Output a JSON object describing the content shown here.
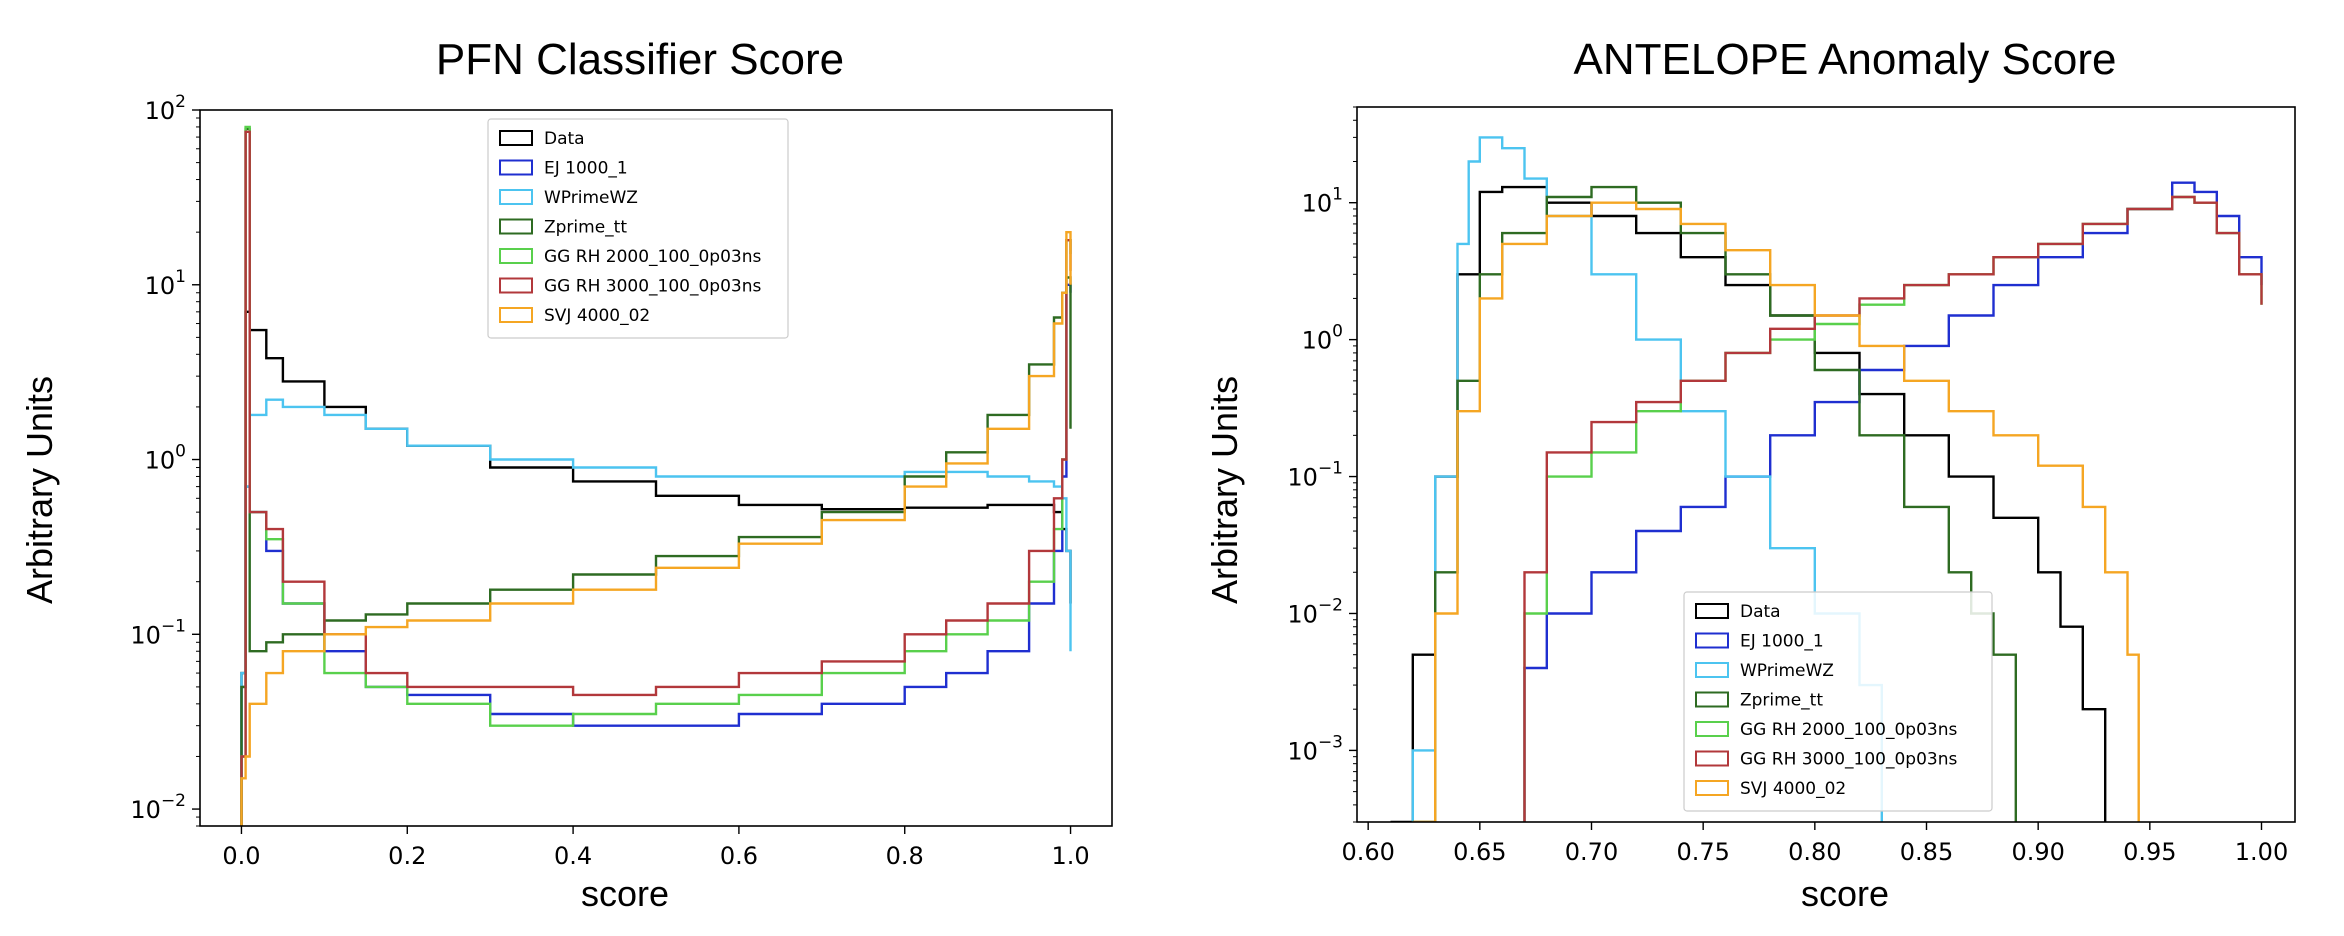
{
  "chart_data": [
    {
      "type": "line",
      "title": "PFN Classifier Score",
      "xlabel": "score",
      "ylabel": "Arbitrary Units",
      "xlim": [
        -0.05,
        1.05
      ],
      "ylim": [
        0.008,
        100
      ],
      "yscale": "log",
      "grid": false,
      "legend_position": "upper-center",
      "xticks": [
        "0.0",
        "0.2",
        "0.4",
        "0.6",
        "0.8",
        "1.0"
      ],
      "xtick_values": [
        0.0,
        0.2,
        0.4,
        0.6,
        0.8,
        1.0
      ],
      "yticks": [
        {
          "base": "10",
          "exp": "−2",
          "value": 0.01
        },
        {
          "base": "10",
          "exp": "−1",
          "value": 0.1
        },
        {
          "base": "10",
          "exp": "0",
          "value": 1
        },
        {
          "base": "10",
          "exp": "1",
          "value": 10
        },
        {
          "base": "10",
          "exp": "2",
          "value": 100
        }
      ],
      "series": [
        {
          "name": "Data",
          "color": "#000000",
          "x": [
            0.0,
            0.005,
            0.01,
            0.03,
            0.05,
            0.1,
            0.15,
            0.2,
            0.3,
            0.4,
            0.5,
            0.6,
            0.7,
            0.8,
            0.9,
            0.95,
            0.98,
            0.99,
            0.995,
            1.0
          ],
          "y": [
            0.06,
            7,
            5.5,
            3.8,
            2.8,
            2.0,
            1.5,
            1.2,
            0.9,
            0.75,
            0.62,
            0.55,
            0.52,
            0.53,
            0.55,
            0.55,
            0.5,
            0.4,
            0.3,
            0.15
          ]
        },
        {
          "name": "EJ 1000_1",
          "color": "#1f2fd0",
          "x": [
            0.0,
            0.005,
            0.01,
            0.03,
            0.05,
            0.1,
            0.15,
            0.2,
            0.3,
            0.4,
            0.5,
            0.6,
            0.7,
            0.8,
            0.85,
            0.9,
            0.95,
            0.98,
            0.99,
            0.995,
            1.0
          ],
          "y": [
            0.05,
            0.7,
            0.5,
            0.3,
            0.15,
            0.08,
            0.05,
            0.045,
            0.035,
            0.03,
            0.03,
            0.035,
            0.04,
            0.05,
            0.06,
            0.08,
            0.15,
            0.3,
            0.8,
            10,
            9
          ]
        },
        {
          "name": "WPrimeWZ",
          "color": "#4cc4f0",
          "x": [
            0.0,
            0.005,
            0.01,
            0.03,
            0.05,
            0.1,
            0.15,
            0.2,
            0.3,
            0.4,
            0.5,
            0.6,
            0.7,
            0.8,
            0.85,
            0.9,
            0.95,
            0.98,
            0.99,
            0.995,
            1.0
          ],
          "y": [
            0.06,
            0.7,
            1.8,
            2.2,
            2.0,
            1.8,
            1.5,
            1.2,
            1.0,
            0.9,
            0.8,
            0.8,
            0.8,
            0.85,
            0.85,
            0.8,
            0.75,
            0.7,
            0.6,
            0.3,
            0.08
          ]
        },
        {
          "name": "Zprime_tt",
          "color": "#2e6b22",
          "x": [
            0.0,
            0.005,
            0.01,
            0.03,
            0.05,
            0.1,
            0.15,
            0.2,
            0.3,
            0.4,
            0.5,
            0.6,
            0.7,
            0.8,
            0.85,
            0.9,
            0.95,
            0.98,
            0.99,
            0.995,
            1.0
          ],
          "y": [
            0.05,
            78,
            0.08,
            0.09,
            0.1,
            0.12,
            0.13,
            0.15,
            0.18,
            0.22,
            0.28,
            0.36,
            0.5,
            0.8,
            1.1,
            1.8,
            3.5,
            6.5,
            9,
            11,
            1.5
          ]
        },
        {
          "name": "GG RH 2000_100_0p03ns",
          "color": "#59d04c",
          "x": [
            0.0,
            0.005,
            0.01,
            0.03,
            0.05,
            0.1,
            0.15,
            0.2,
            0.3,
            0.4,
            0.5,
            0.6,
            0.7,
            0.8,
            0.85,
            0.9,
            0.95,
            0.98,
            0.99,
            0.995,
            1.0
          ],
          "y": [
            0.02,
            80,
            0.5,
            0.35,
            0.15,
            0.06,
            0.05,
            0.04,
            0.03,
            0.035,
            0.04,
            0.045,
            0.06,
            0.08,
            0.1,
            0.12,
            0.2,
            0.4,
            1.0,
            18,
            15
          ]
        },
        {
          "name": "GG RH 3000_100_0p03ns",
          "color": "#b2383b",
          "x": [
            0.0,
            0.005,
            0.01,
            0.03,
            0.05,
            0.1,
            0.15,
            0.2,
            0.3,
            0.4,
            0.5,
            0.6,
            0.7,
            0.8,
            0.85,
            0.9,
            0.95,
            0.98,
            0.99,
            0.995,
            1.0
          ],
          "y": [
            0.02,
            75,
            0.5,
            0.4,
            0.2,
            0.1,
            0.06,
            0.05,
            0.05,
            0.045,
            0.05,
            0.06,
            0.07,
            0.1,
            0.12,
            0.15,
            0.3,
            0.6,
            1.0,
            18,
            12
          ]
        },
        {
          "name": "SVJ 4000_02",
          "color": "#f5a623",
          "x": [
            0.0,
            0.005,
            0.01,
            0.03,
            0.05,
            0.1,
            0.15,
            0.2,
            0.3,
            0.4,
            0.5,
            0.6,
            0.7,
            0.8,
            0.85,
            0.9,
            0.95,
            0.98,
            0.99,
            0.995,
            1.0
          ],
          "y": [
            0.015,
            0.02,
            0.04,
            0.06,
            0.08,
            0.1,
            0.11,
            0.12,
            0.15,
            0.18,
            0.24,
            0.33,
            0.45,
            0.7,
            0.95,
            1.5,
            3.0,
            6.0,
            9,
            20,
            10
          ]
        }
      ]
    },
    {
      "type": "line",
      "title": "ANTELOPE Anomaly Score",
      "xlabel": "score",
      "ylabel": "Arbitrary Units",
      "xlim": [
        0.595,
        1.015
      ],
      "ylim": [
        0.0003,
        50
      ],
      "yscale": "log",
      "grid": false,
      "legend_position": "lower-center",
      "xticks": [
        "0.60",
        "0.65",
        "0.70",
        "0.75",
        "0.80",
        "0.85",
        "0.90",
        "0.95",
        "1.00"
      ],
      "xtick_values": [
        0.6,
        0.65,
        0.7,
        0.75,
        0.8,
        0.85,
        0.9,
        0.95,
        1.0
      ],
      "yticks": [
        {
          "base": "10",
          "exp": "−3",
          "value": 0.001
        },
        {
          "base": "10",
          "exp": "−2",
          "value": 0.01
        },
        {
          "base": "10",
          "exp": "−1",
          "value": 0.1
        },
        {
          "base": "10",
          "exp": "0",
          "value": 1
        },
        {
          "base": "10",
          "exp": "1",
          "value": 10
        }
      ],
      "series": [
        {
          "name": "Data",
          "color": "#000000",
          "x": [
            0.61,
            0.62,
            0.63,
            0.64,
            0.65,
            0.66,
            0.68,
            0.7,
            0.72,
            0.74,
            0.76,
            0.78,
            0.8,
            0.82,
            0.84,
            0.86,
            0.88,
            0.9,
            0.91,
            0.92,
            0.93
          ],
          "y": [
            0.0003,
            0.005,
            0.1,
            3,
            12,
            13,
            10,
            8,
            6,
            4,
            2.5,
            1.5,
            0.8,
            0.4,
            0.2,
            0.1,
            0.05,
            0.02,
            0.008,
            0.002,
            0.0003
          ]
        },
        {
          "name": "EJ 1000_1",
          "color": "#1f2fd0",
          "x": [
            0.67,
            0.68,
            0.7,
            0.72,
            0.74,
            0.76,
            0.78,
            0.8,
            0.82,
            0.84,
            0.86,
            0.88,
            0.9,
            0.92,
            0.94,
            0.96,
            0.97,
            0.98,
            0.99,
            1.0
          ],
          "y": [
            0.004,
            0.01,
            0.02,
            0.04,
            0.06,
            0.1,
            0.2,
            0.35,
            0.6,
            0.9,
            1.5,
            2.5,
            4,
            6,
            9,
            14,
            12,
            8,
            4,
            2.5
          ]
        },
        {
          "name": "WPrimeWZ",
          "color": "#4cc4f0",
          "x": [
            0.62,
            0.63,
            0.64,
            0.645,
            0.65,
            0.66,
            0.67,
            0.68,
            0.7,
            0.72,
            0.74,
            0.76,
            0.78,
            0.8,
            0.82,
            0.83
          ],
          "y": [
            0.001,
            0.1,
            5,
            20,
            30,
            25,
            15,
            8,
            3,
            1,
            0.3,
            0.1,
            0.03,
            0.01,
            0.003,
            0.0003
          ]
        },
        {
          "name": "Zprime_tt",
          "color": "#2e6b22",
          "x": [
            0.62,
            0.63,
            0.64,
            0.65,
            0.66,
            0.68,
            0.7,
            0.72,
            0.74,
            0.76,
            0.78,
            0.8,
            0.82,
            0.84,
            0.86,
            0.87,
            0.88,
            0.89
          ],
          "y": [
            0.0003,
            0.02,
            0.5,
            3,
            6,
            11,
            13,
            10,
            6,
            3,
            1.5,
            0.6,
            0.2,
            0.06,
            0.02,
            0.01,
            0.005,
            0.0003
          ]
        },
        {
          "name": "GG RH 2000_100_0p03ns",
          "color": "#59d04c",
          "x": [
            0.67,
            0.68,
            0.7,
            0.72,
            0.74,
            0.76,
            0.78,
            0.8,
            0.82,
            0.84,
            0.86,
            0.88,
            0.9,
            0.92,
            0.94,
            0.96,
            0.97,
            0.98,
            0.99,
            1.0
          ],
          "y": [
            0.01,
            0.1,
            0.15,
            0.3,
            0.5,
            0.8,
            1.0,
            1.3,
            1.8,
            2.5,
            3,
            4,
            5,
            7,
            9,
            11,
            10,
            6,
            3,
            1.8
          ]
        },
        {
          "name": "GG RH 3000_100_0p03ns",
          "color": "#b2383b",
          "x": [
            0.67,
            0.68,
            0.7,
            0.72,
            0.74,
            0.76,
            0.78,
            0.8,
            0.82,
            0.84,
            0.86,
            0.88,
            0.9,
            0.92,
            0.94,
            0.96,
            0.97,
            0.98,
            0.99,
            1.0
          ],
          "y": [
            0.02,
            0.15,
            0.25,
            0.35,
            0.5,
            0.8,
            1.2,
            1.5,
            2,
            2.5,
            3,
            4,
            5,
            7,
            9,
            11,
            10,
            6,
            3,
            1.8
          ]
        },
        {
          "name": "SVJ 4000_02",
          "color": "#f5a623",
          "x": [
            0.62,
            0.63,
            0.64,
            0.65,
            0.66,
            0.68,
            0.7,
            0.72,
            0.74,
            0.76,
            0.78,
            0.8,
            0.82,
            0.84,
            0.86,
            0.88,
            0.9,
            0.92,
            0.93,
            0.94,
            0.945
          ],
          "y": [
            0.0003,
            0.01,
            0.3,
            2,
            5,
            8,
            10,
            9,
            7,
            4.5,
            2.5,
            1.5,
            0.9,
            0.5,
            0.3,
            0.2,
            0.12,
            0.06,
            0.02,
            0.005,
            0.0003
          ]
        }
      ]
    }
  ]
}
